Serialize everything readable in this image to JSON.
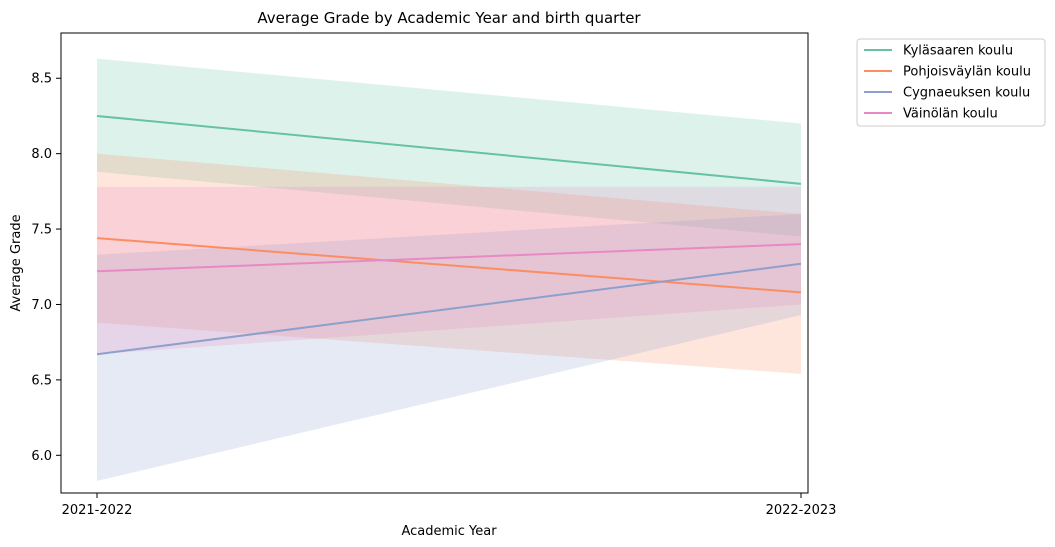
{
  "chart_data": {
    "type": "line",
    "title": "Average Grade by Academic Year and birth quarter",
    "xlabel": "Academic Year",
    "ylabel": "Average Grade",
    "categories": [
      "2021-2022",
      "2022-2023"
    ],
    "ylim": [
      5.75,
      8.8
    ],
    "yticks": [
      6.0,
      6.5,
      7.0,
      7.5,
      8.0,
      8.5
    ],
    "ytick_labels": [
      "6.0",
      "6.5",
      "7.0",
      "7.5",
      "8.0",
      "8.5"
    ],
    "grid": false,
    "legend_position": "outside upper right",
    "series": [
      {
        "name": "Kyläsaaren koulu",
        "color": "#66c2a5",
        "values": [
          8.25,
          7.8
        ],
        "ci_low": [
          7.88,
          7.45
        ],
        "ci_high": [
          8.63,
          8.2
        ]
      },
      {
        "name": "Pohjoisväylän koulu",
        "color": "#fc8d62",
        "values": [
          7.44,
          7.08
        ],
        "ci_low": [
          6.88,
          6.54
        ],
        "ci_high": [
          8.0,
          7.6
        ]
      },
      {
        "name": "Cygnaeuksen koulu",
        "color": "#8da0cb",
        "values": [
          6.67,
          7.27
        ],
        "ci_low": [
          5.83,
          6.93
        ],
        "ci_high": [
          7.33,
          7.6
        ]
      },
      {
        "name": "Väinölän koulu",
        "color": "#e78ac3",
        "values": [
          7.22,
          7.4
        ],
        "ci_low": [
          6.67,
          7.0
        ],
        "ci_high": [
          7.78,
          7.78
        ]
      }
    ]
  }
}
